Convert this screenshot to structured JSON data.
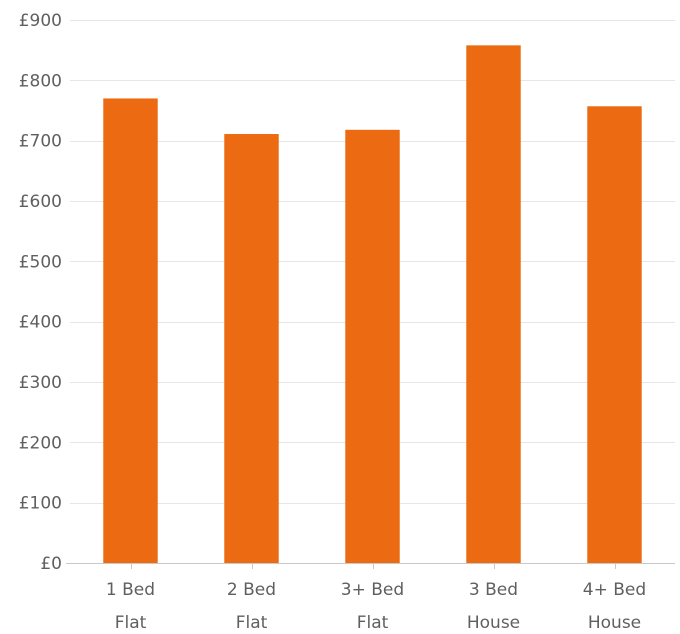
{
  "chart_data": {
    "type": "bar",
    "categories": [
      [
        "1 Bed",
        "Flat"
      ],
      [
        "2 Bed",
        "Flat"
      ],
      [
        "3+ Bed",
        "Flat"
      ],
      [
        "3 Bed",
        "House"
      ],
      [
        "4+ Bed",
        "House"
      ]
    ],
    "values": [
      770,
      711,
      718,
      858,
      757
    ],
    "ylim": [
      0,
      900
    ],
    "yticks": [
      0,
      100,
      200,
      300,
      400,
      500,
      600,
      700,
      800,
      900
    ],
    "ytick_labels": [
      "£0",
      "£100",
      "£200",
      "£300",
      "£400",
      "£500",
      "£600",
      "£700",
      "£800",
      "£900"
    ],
    "title": "",
    "xlabel": "",
    "ylabel": "",
    "grid": true,
    "legend": "none",
    "colors": {
      "bar": "#ec6b12",
      "grid": "#e6e6e6",
      "axis": "#c8c8c8",
      "text": "#5f5f5f"
    }
  }
}
